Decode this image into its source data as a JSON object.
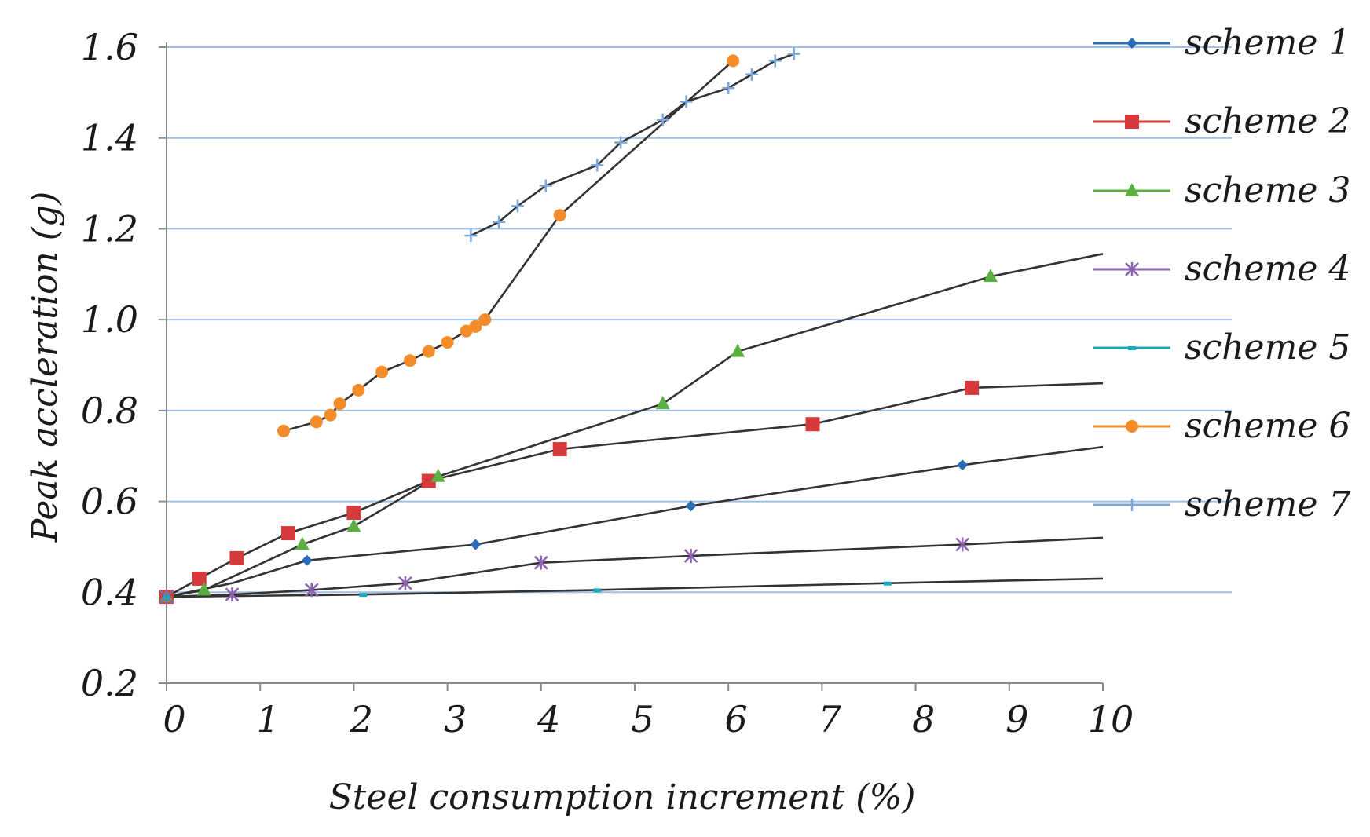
{
  "chart_data": {
    "type": "line",
    "title": "",
    "xlabel": "Steel consumption increment (%)",
    "ylabel": "Peak accleration (g)",
    "xlim": [
      0,
      10
    ],
    "ylim": [
      0.2,
      1.6
    ],
    "xticks": [
      0,
      1,
      2,
      3,
      4,
      5,
      6,
      7,
      8,
      9,
      10
    ],
    "yticks": [
      0.2,
      0.4,
      0.6,
      0.8,
      1.0,
      1.2,
      1.4,
      1.6
    ],
    "ytick_labels": [
      "0.2",
      "0.4",
      "0.6",
      "0.8",
      "1.0",
      "1.2",
      "1.4",
      "1.6"
    ],
    "gridlines": "horizontal",
    "legend_position": "right",
    "series": [
      {
        "name": "scheme 1",
        "color": "#2a6cb5",
        "marker": "diamond",
        "points": [
          [
            0,
            0.39
          ],
          [
            1.5,
            0.47
          ],
          [
            3.3,
            0.505
          ],
          [
            5.6,
            0.59
          ],
          [
            8.5,
            0.68
          ]
        ],
        "trend": [
          [
            0,
            0.39
          ],
          [
            0.7,
            0.42
          ],
          [
            1.5,
            0.47
          ],
          [
            3.3,
            0.505
          ],
          [
            5.6,
            0.59
          ],
          [
            8.5,
            0.68
          ],
          [
            10,
            0.72
          ]
        ]
      },
      {
        "name": "scheme 2",
        "color": "#d63a3a",
        "marker": "square",
        "points": [
          [
            0,
            0.39
          ],
          [
            0.35,
            0.43
          ],
          [
            0.75,
            0.475
          ],
          [
            1.3,
            0.53
          ],
          [
            2.0,
            0.575
          ],
          [
            2.8,
            0.645
          ],
          [
            4.2,
            0.715
          ],
          [
            6.9,
            0.77
          ],
          [
            8.6,
            0.85
          ]
        ],
        "trend": [
          [
            0,
            0.39
          ],
          [
            0.35,
            0.43
          ],
          [
            0.75,
            0.475
          ],
          [
            1.3,
            0.53
          ],
          [
            2.0,
            0.575
          ],
          [
            2.8,
            0.645
          ],
          [
            4.2,
            0.715
          ],
          [
            6.9,
            0.77
          ],
          [
            8.6,
            0.85
          ],
          [
            10,
            0.86
          ]
        ]
      },
      {
        "name": "scheme 3",
        "color": "#5cb043",
        "marker": "triangle",
        "points": [
          [
            0,
            0.39
          ],
          [
            0.4,
            0.405
          ],
          [
            1.45,
            0.505
          ],
          [
            2.0,
            0.545
          ],
          [
            2.9,
            0.655
          ],
          [
            5.3,
            0.815
          ],
          [
            6.1,
            0.93
          ],
          [
            8.8,
            1.095
          ]
        ],
        "trend": [
          [
            0,
            0.39
          ],
          [
            0.4,
            0.405
          ],
          [
            1.45,
            0.505
          ],
          [
            2.0,
            0.545
          ],
          [
            2.9,
            0.655
          ],
          [
            5.3,
            0.815
          ],
          [
            6.1,
            0.93
          ],
          [
            8.8,
            1.095
          ],
          [
            10,
            1.145
          ]
        ]
      },
      {
        "name": "scheme 4",
        "color": "#8e62b3",
        "marker": "cross",
        "points": [
          [
            0,
            0.39
          ],
          [
            0.7,
            0.395
          ],
          [
            1.55,
            0.405
          ],
          [
            2.55,
            0.42
          ],
          [
            4.0,
            0.465
          ],
          [
            5.6,
            0.48
          ],
          [
            8.5,
            0.505
          ]
        ],
        "trend": [
          [
            0,
            0.39
          ],
          [
            0.7,
            0.395
          ],
          [
            1.55,
            0.405
          ],
          [
            2.55,
            0.42
          ],
          [
            4.0,
            0.465
          ],
          [
            5.6,
            0.48
          ],
          [
            8.5,
            0.505
          ],
          [
            10,
            0.52
          ]
        ]
      },
      {
        "name": "scheme 5",
        "color": "#1ba7bf",
        "marker": "dash",
        "points": [
          [
            0,
            0.39
          ],
          [
            2.1,
            0.395
          ],
          [
            4.6,
            0.405
          ],
          [
            7.7,
            0.42
          ]
        ],
        "trend": [
          [
            0,
            0.39
          ],
          [
            2.1,
            0.395
          ],
          [
            4.6,
            0.405
          ],
          [
            7.7,
            0.42
          ],
          [
            10,
            0.43
          ]
        ]
      },
      {
        "name": "scheme 6",
        "color": "#f58c2a",
        "marker": "circle",
        "points": [
          [
            1.25,
            0.755
          ],
          [
            1.6,
            0.775
          ],
          [
            1.75,
            0.79
          ],
          [
            1.85,
            0.815
          ],
          [
            2.05,
            0.845
          ],
          [
            2.3,
            0.885
          ],
          [
            2.6,
            0.91
          ],
          [
            2.8,
            0.93
          ],
          [
            3.0,
            0.95
          ],
          [
            3.2,
            0.975
          ],
          [
            3.3,
            0.985
          ],
          [
            3.4,
            1.0
          ],
          [
            4.2,
            1.23
          ],
          [
            6.05,
            1.57
          ]
        ],
        "trend": [
          [
            1.25,
            0.755
          ],
          [
            1.6,
            0.775
          ],
          [
            1.75,
            0.79
          ],
          [
            1.85,
            0.815
          ],
          [
            2.05,
            0.845
          ],
          [
            2.3,
            0.885
          ],
          [
            2.6,
            0.91
          ],
          [
            2.8,
            0.93
          ],
          [
            3.0,
            0.95
          ],
          [
            3.2,
            0.975
          ],
          [
            3.3,
            0.985
          ],
          [
            3.4,
            1.0
          ],
          [
            4.2,
            1.23
          ],
          [
            6.05,
            1.57
          ]
        ]
      },
      {
        "name": "scheme 7",
        "color": "#7aa6dc",
        "marker": "plus",
        "points": [
          [
            3.25,
            1.185
          ],
          [
            3.55,
            1.215
          ],
          [
            3.75,
            1.25
          ],
          [
            4.05,
            1.295
          ],
          [
            4.6,
            1.34
          ],
          [
            4.85,
            1.39
          ],
          [
            5.3,
            1.44
          ],
          [
            5.55,
            1.48
          ],
          [
            6.0,
            1.51
          ],
          [
            6.25,
            1.54
          ],
          [
            6.5,
            1.57
          ],
          [
            6.7,
            1.585
          ]
        ],
        "trend": [
          [
            3.25,
            1.185
          ],
          [
            3.55,
            1.215
          ],
          [
            3.75,
            1.25
          ],
          [
            4.05,
            1.295
          ],
          [
            4.6,
            1.34
          ],
          [
            4.85,
            1.39
          ],
          [
            5.3,
            1.44
          ],
          [
            5.55,
            1.48
          ],
          [
            6.0,
            1.51
          ],
          [
            6.25,
            1.54
          ],
          [
            6.5,
            1.57
          ],
          [
            6.7,
            1.585
          ]
        ]
      }
    ]
  }
}
